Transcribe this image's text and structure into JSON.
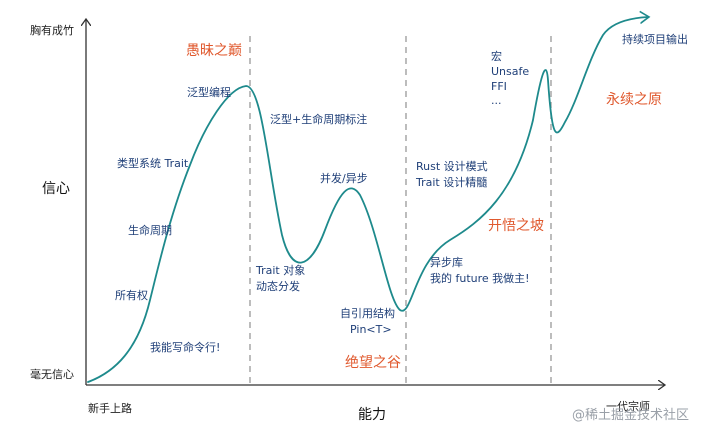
{
  "axes": {
    "y_top": "胸有成竹",
    "y_title": "信心",
    "y_bottom": "毫无信心",
    "x_left": "新手上路",
    "x_title": "能力",
    "x_right": "一代宗师"
  },
  "zones": {
    "peak": "愚昧之巅",
    "valley": "绝望之谷",
    "slope": "开悟之坡",
    "plateau": "永续之原"
  },
  "stages": {
    "cli": "我能写命令行!",
    "ownership": "所有权",
    "lifetime": "生命周期",
    "type_system": "类型系统 Trait",
    "generics": "泛型编程",
    "generics_lifetime": "泛型+生命周期标注",
    "trait_object_1": "Trait 对象",
    "trait_object_2": "动态分发",
    "concurrency": "并发/异步",
    "self_ref_1": "自引用结构",
    "self_ref_2": "Pin<T>",
    "design_1": "Rust 设计模式",
    "design_2": "Trait 设计精髓",
    "async_lib_1": "异步库",
    "async_lib_2": "我的 future 我做主!",
    "macro": "宏",
    "unsafe": "Unsafe",
    "ffi": "FFI",
    "more": "...",
    "output": "持续项目输出"
  },
  "watermark": "@稀土掘金技术社区",
  "colors": {
    "curve": "#1e8a8c",
    "zone": "#e0592e",
    "label": "#1f3f78",
    "axis": "#333333",
    "divider": "#999999"
  }
}
